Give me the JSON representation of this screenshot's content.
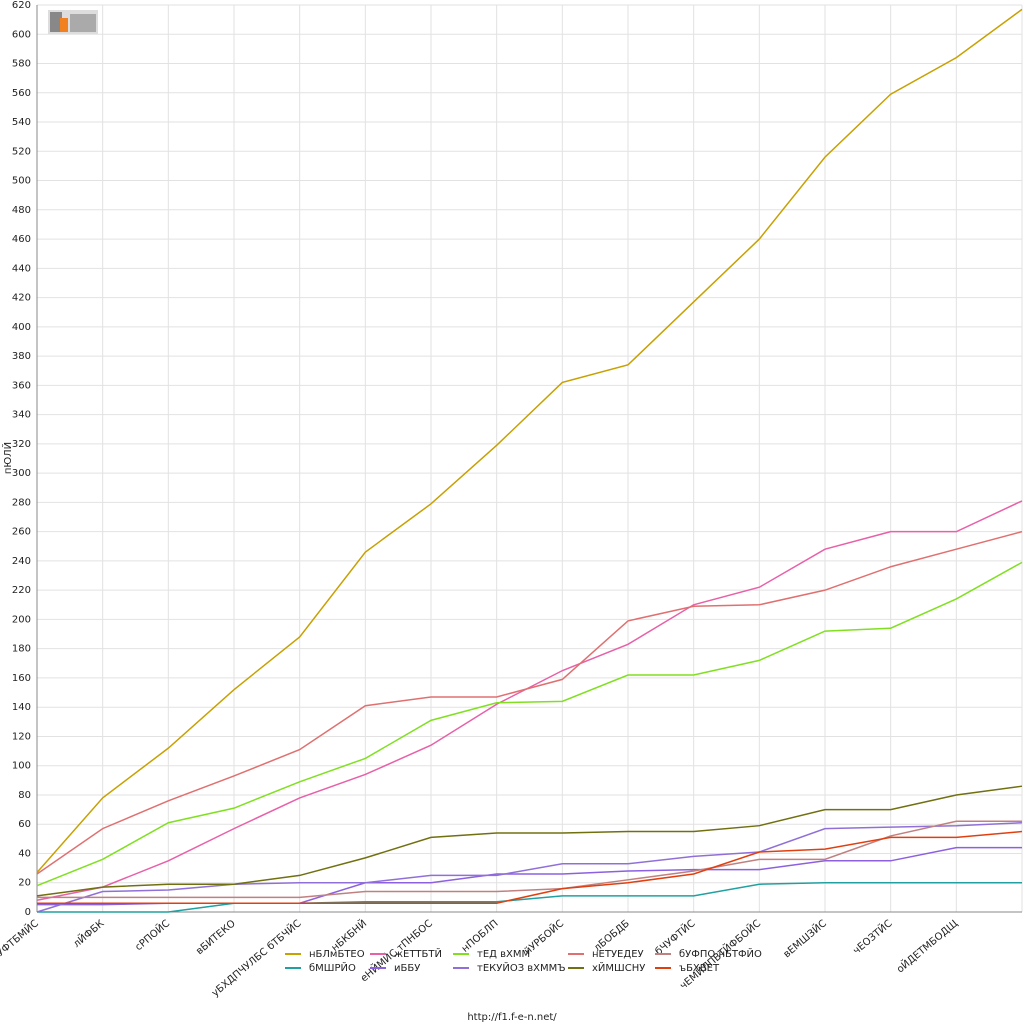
{
  "chart_data": {
    "type": "line",
    "y_label": "пЮЛЙ",
    "footer": "http://f1.f-e-n.net/",
    "categories": [
      "бЧУФТБМЙС",
      "лЙФБК",
      "сРПОЙС",
      "вБИТЕКО",
      "уБХДПЧУЛБС бТБЧЙС",
      "нБКБНЙ",
      "еНЙМЙС тПНБОС",
      "нПОБЛП",
      "йУРБОЙС",
      "лБОБДБ",
      "бЧУФТЙС",
      "чЕМЙЛПВТЙФБОЙС",
      "вЕМШЗЙС",
      "чЕОЗТЙС",
      "оЙДЕТМБОДЩ",
      null
    ],
    "ylim": [
      0,
      620
    ],
    "yticks": [
      0,
      20,
      40,
      60,
      80,
      100,
      120,
      140,
      160,
      180,
      200,
      220,
      240,
      260,
      280,
      300,
      320,
      340,
      360,
      380,
      400,
      420,
      440,
      460,
      480,
      500,
      520,
      540,
      560,
      580,
      600,
      620
    ],
    "grid": true,
    "series": [
      {
        "name": "нБЛмБТЕО",
        "color": "#c8a000",
        "values": [
          27,
          78,
          112,
          152,
          188,
          246,
          279,
          319,
          362,
          374,
          417,
          460,
          516,
          559,
          584,
          617
        ]
      },
      {
        "name": "бМШРЙО",
        "color": "#20a0a0",
        "values": [
          0,
          0,
          0,
          6,
          6,
          7,
          7,
          7,
          11,
          11,
          11,
          19,
          20,
          20,
          20,
          20
        ]
      },
      {
        "name": "жЕТТБТЙ",
        "color": "#e860a8",
        "values": [
          8,
          17,
          35,
          57,
          78,
          94,
          114,
          142,
          165,
          183,
          210,
          222,
          248,
          260,
          260,
          281
        ]
      },
      {
        "name": "иББУ",
        "color": "#8c60e0",
        "values": [
          5,
          5,
          6,
          6,
          6,
          20,
          20,
          26,
          26,
          28,
          29,
          29,
          35,
          35,
          44,
          44
        ]
      },
      {
        "name": "тЕД вХММ",
        "color": "#80e020",
        "values": [
          18,
          36,
          61,
          71,
          89,
          105,
          131,
          143,
          144,
          162,
          162,
          172,
          192,
          194,
          214,
          239
        ]
      },
      {
        "name": "тЕКУЙОЗ вХММЪ",
        "color": "#9070d8",
        "values": [
          0,
          14,
          15,
          19,
          20,
          20,
          25,
          25,
          33,
          33,
          38,
          41,
          57,
          58,
          59,
          61
        ]
      },
      {
        "name": "нЕТУЕДЕУ",
        "color": "#e07070",
        "values": [
          26,
          57,
          76,
          93,
          111,
          141,
          147,
          147,
          159,
          199,
          209,
          210,
          220,
          236,
          248,
          260
        ]
      },
      {
        "name": "хЙМШСНУ",
        "color": "#707010",
        "values": [
          11,
          17,
          19,
          19,
          25,
          37,
          51,
          54,
          54,
          55,
          55,
          59,
          70,
          70,
          80,
          86
        ]
      },
      {
        "name": "бУФПО нБТФЙО",
        "color": "#c08080",
        "values": [
          10,
          10,
          10,
          10,
          10,
          14,
          14,
          14,
          16,
          22,
          28,
          36,
          36,
          52,
          62,
          62
        ]
      },
      {
        "name": "ъБХВЕТ",
        "color": "#e04010",
        "values": [
          6,
          6,
          6,
          6,
          6,
          6,
          6,
          6,
          16,
          20,
          26,
          41,
          43,
          51,
          51,
          55
        ]
      }
    ]
  }
}
